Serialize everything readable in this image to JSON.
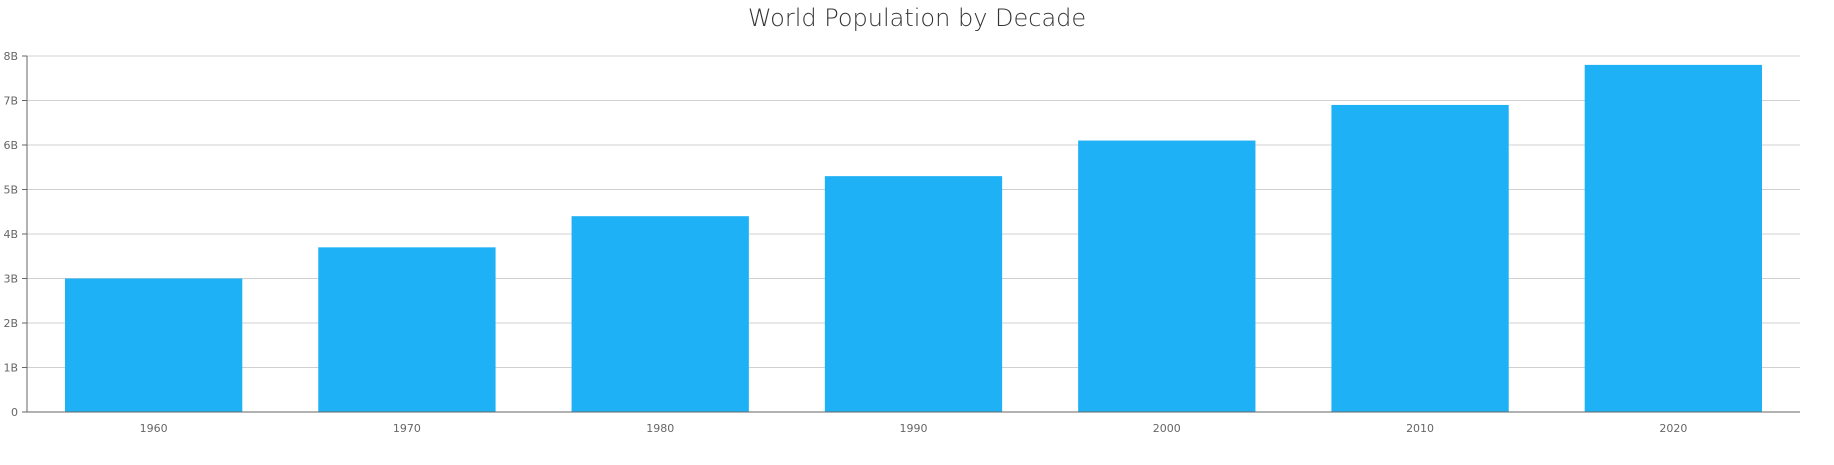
{
  "chart_data": {
    "type": "bar",
    "title": "World Population by Decade",
    "xlabel": "",
    "ylabel": "",
    "categories": [
      "1960",
      "1970",
      "1980",
      "1990",
      "2000",
      "2010",
      "2020"
    ],
    "values": [
      3.0,
      3.7,
      4.4,
      5.3,
      6.1,
      6.9,
      7.8
    ],
    "value_unit": "billions",
    "ylim": [
      0,
      8
    ],
    "yticks": [
      0,
      1,
      2,
      3,
      4,
      5,
      6,
      7,
      8
    ],
    "ytick_labels": [
      "0",
      "1B",
      "2B",
      "3B",
      "4B",
      "5B",
      "6B",
      "7B",
      "8B"
    ],
    "grid": true,
    "legend": "none",
    "bar_color": "#1eb1f5",
    "grid_color": "#d0d0d0",
    "axis_color": "#666666"
  }
}
